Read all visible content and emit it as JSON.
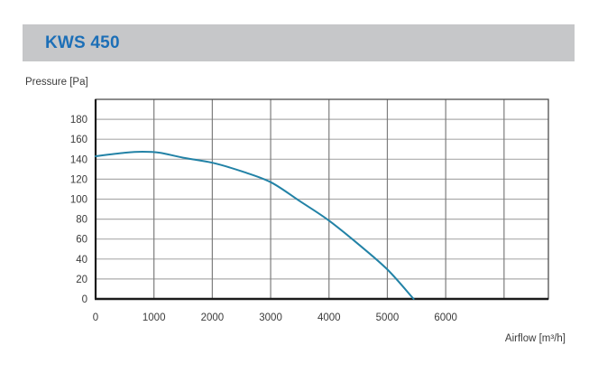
{
  "header": {
    "title": "KWS 450"
  },
  "colors": {
    "header_bar": "#c6c7c9",
    "header_text": "#1c6fb7",
    "curve": "#2282a6",
    "grid_horizontal": "#ababab",
    "grid_vertical": "#7d7d7d",
    "frame": "#4d4d4d",
    "axis": "#1a1a1a",
    "label_text": "#3b3b3b"
  },
  "chart_data": {
    "type": "line",
    "xlabel": "Airflow [m³/h]",
    "ylabel": "Pressure [Pa]",
    "xlim": [
      0,
      7760
    ],
    "ylim": [
      0,
      200
    ],
    "x_ticks": [
      0,
      1000,
      2000,
      3000,
      4000,
      5000,
      6000
    ],
    "y_ticks": [
      0,
      20,
      40,
      60,
      80,
      100,
      120,
      140,
      160,
      180
    ],
    "x_grid_step": 1000,
    "y_grid_step": 20,
    "grid": true,
    "legend": "none",
    "series": [
      {
        "name": "KWS 450",
        "points": [
          [
            0,
            143
          ],
          [
            500,
            146.5
          ],
          [
            800,
            147.5
          ],
          [
            1100,
            146.5
          ],
          [
            1500,
            141.5
          ],
          [
            2000,
            136.5
          ],
          [
            2500,
            128
          ],
          [
            3000,
            117
          ],
          [
            3500,
            98
          ],
          [
            4000,
            78.5
          ],
          [
            4500,
            55
          ],
          [
            5000,
            29.5
          ],
          [
            5450,
            0
          ]
        ]
      }
    ]
  }
}
